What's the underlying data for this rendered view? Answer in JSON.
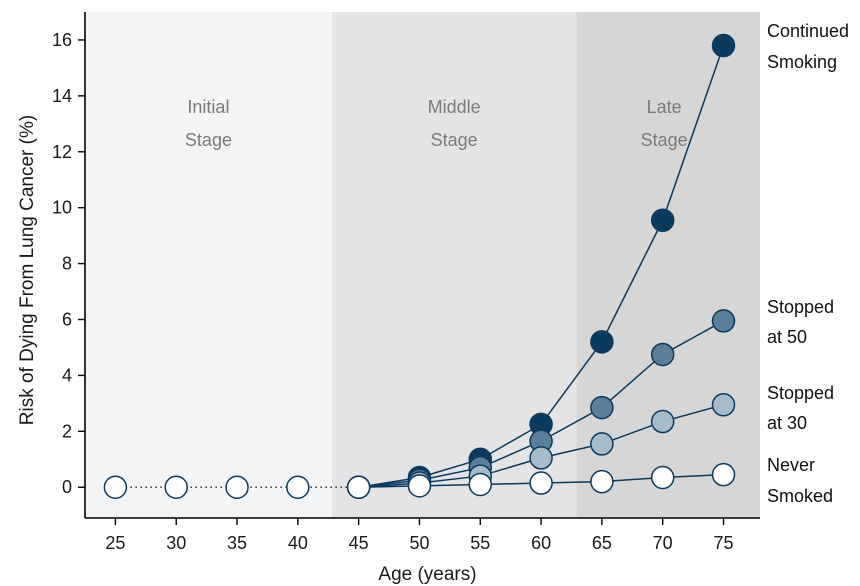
{
  "chart_data": {
    "type": "line",
    "xlabel": "Age (years)",
    "ylabel": "Risk of Dying From Lung Cancer (%)",
    "x": [
      25,
      30,
      35,
      40,
      45,
      50,
      55,
      60,
      65,
      70,
      75
    ],
    "xlim": [
      22.5,
      78
    ],
    "ylim": [
      -1.1,
      17
    ],
    "yticks": [
      0,
      2,
      4,
      6,
      8,
      10,
      12,
      14,
      16
    ],
    "grid": false,
    "stages": [
      {
        "line1": "Initial",
        "line2": "Stage",
        "x_from": 22.5,
        "x_to": 42.8,
        "color": "#f3f4f6"
      },
      {
        "line1": "Middle",
        "line2": "Stage",
        "x_from": 42.8,
        "x_to": 62.9,
        "color": "#e4e4e6"
      },
      {
        "line1": "Late",
        "line2": "Stage",
        "x_from": 62.9,
        "x_to": 78,
        "color": "#d7d6d7"
      }
    ],
    "shared_baseline": {
      "x": [
        25,
        30,
        35,
        40,
        45
      ],
      "values": [
        0,
        0,
        0,
        0,
        0
      ],
      "style": "dotted"
    },
    "series": [
      {
        "name": "Continued Smoking",
        "label_line1": "Continued",
        "label_line2": "Smoking",
        "x": [
          45,
          50,
          55,
          60,
          65,
          70,
          75
        ],
        "values": [
          0,
          0.35,
          1.0,
          2.25,
          5.2,
          9.55,
          15.8
        ],
        "color": "#0a3a5e"
      },
      {
        "name": "Stopped at 50",
        "label_line1": "Stopped",
        "label_line2": "at 50",
        "x": [
          45,
          50,
          55,
          60,
          65,
          70,
          75
        ],
        "values": [
          0,
          0.25,
          0.7,
          1.65,
          2.85,
          4.75,
          5.95
        ],
        "color": "#5a7f9b"
      },
      {
        "name": "Stopped at 30",
        "label_line1": "Stopped",
        "label_line2": "at 30",
        "x": [
          45,
          50,
          55,
          60,
          65,
          70,
          75
        ],
        "values": [
          0,
          0.15,
          0.4,
          1.05,
          1.55,
          2.35,
          2.95
        ],
        "color": "#a7bccb"
      },
      {
        "name": "Never Smoked",
        "label_line1": "Never",
        "label_line2": "Smoked",
        "x": [
          45,
          50,
          55,
          60,
          65,
          70,
          75
        ],
        "values": [
          0,
          0.05,
          0.1,
          0.15,
          0.2,
          0.35,
          0.45
        ],
        "color": "#ffffff"
      }
    ],
    "line_color": "#0a3a5e"
  }
}
